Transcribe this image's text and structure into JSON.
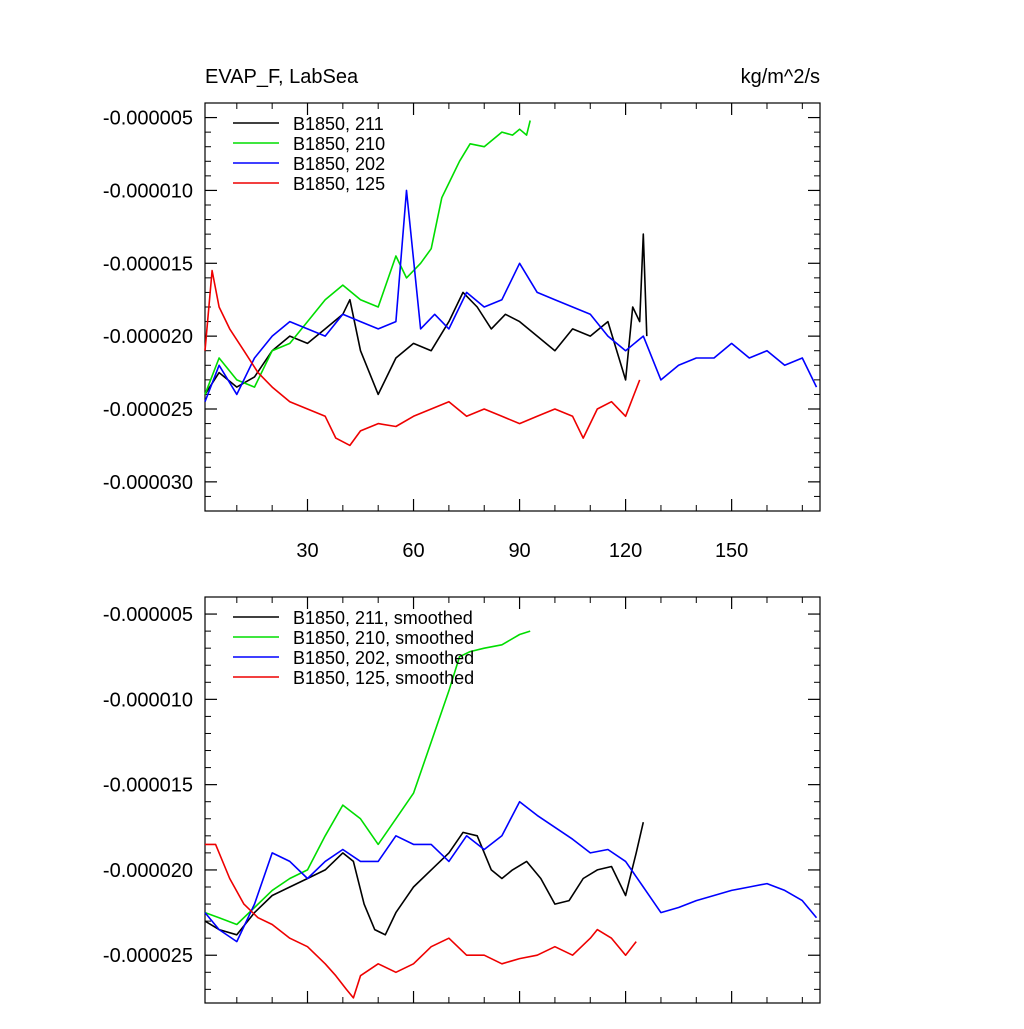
{
  "chart_data": [
    {
      "type": "line",
      "title": "EVAP_F, LabSea",
      "units": "kg/m^2/s",
      "xlim": [
        1,
        175
      ],
      "ylim": [
        -3.2e-05,
        -4e-06
      ],
      "xticks": [
        30,
        60,
        90,
        120,
        150
      ],
      "xtick_labels": [
        "30",
        "60",
        "90",
        "120",
        "150"
      ],
      "yticks": [
        -5e-06,
        -1e-05,
        -1.5e-05,
        -2e-05,
        -2.5e-05,
        -3e-05
      ],
      "ytick_labels": [
        "-0.000005",
        "-0.000010",
        "-0.000015",
        "-0.000020",
        "-0.000025",
        "-0.000030"
      ],
      "legend_position": "top-left",
      "series": [
        {
          "name": "B1850, 211",
          "color": "#000000",
          "x": [
            1,
            5,
            10,
            15,
            20,
            25,
            30,
            35,
            40,
            42,
            45,
            50,
            55,
            60,
            65,
            70,
            74,
            78,
            82,
            86,
            90,
            95,
            100,
            105,
            110,
            115,
            120,
            122,
            124,
            125,
            126
          ],
          "values": [
            -2.4e-05,
            -2.25e-05,
            -2.35e-05,
            -2.28e-05,
            -2.1e-05,
            -2e-05,
            -2.05e-05,
            -1.95e-05,
            -1.85e-05,
            -1.75e-05,
            -2.1e-05,
            -2.4e-05,
            -2.15e-05,
            -2.05e-05,
            -2.1e-05,
            -1.9e-05,
            -1.7e-05,
            -1.8e-05,
            -1.95e-05,
            -1.85e-05,
            -1.9e-05,
            -2e-05,
            -2.1e-05,
            -1.95e-05,
            -2e-05,
            -1.9e-05,
            -2.3e-05,
            -1.8e-05,
            -1.9e-05,
            -1.3e-05,
            -2e-05
          ]
        },
        {
          "name": "B1850, 210",
          "color": "#00dd00",
          "x": [
            1,
            5,
            10,
            15,
            20,
            25,
            30,
            35,
            40,
            45,
            50,
            55,
            58,
            62,
            65,
            68,
            70,
            73,
            76,
            80,
            85,
            88,
            90,
            92,
            93
          ],
          "values": [
            -2.4e-05,
            -2.15e-05,
            -2.3e-05,
            -2.35e-05,
            -2.1e-05,
            -2.05e-05,
            -1.9e-05,
            -1.75e-05,
            -1.65e-05,
            -1.75e-05,
            -1.8e-05,
            -1.45e-05,
            -1.6e-05,
            -1.5e-05,
            -1.4e-05,
            -1.05e-05,
            -9.5e-06,
            -8e-06,
            -6.8e-06,
            -7e-06,
            -6e-06,
            -6.2e-06,
            -5.8e-06,
            -6.2e-06,
            -5.2e-06
          ]
        },
        {
          "name": "B1850, 202",
          "color": "#0000ff",
          "x": [
            1,
            5,
            10,
            15,
            20,
            25,
            30,
            35,
            40,
            45,
            50,
            55,
            58,
            62,
            66,
            70,
            75,
            80,
            85,
            90,
            95,
            100,
            105,
            110,
            115,
            120,
            125,
            130,
            135,
            140,
            145,
            150,
            155,
            160,
            165,
            170,
            174
          ],
          "values": [
            -2.45e-05,
            -2.2e-05,
            -2.4e-05,
            -2.15e-05,
            -2e-05,
            -1.9e-05,
            -1.95e-05,
            -2e-05,
            -1.85e-05,
            -1.9e-05,
            -1.95e-05,
            -1.9e-05,
            -1e-05,
            -1.95e-05,
            -1.85e-05,
            -1.95e-05,
            -1.7e-05,
            -1.8e-05,
            -1.75e-05,
            -1.5e-05,
            -1.7e-05,
            -1.75e-05,
            -1.8e-05,
            -1.85e-05,
            -2e-05,
            -2.1e-05,
            -2e-05,
            -2.3e-05,
            -2.2e-05,
            -2.15e-05,
            -2.15e-05,
            -2.05e-05,
            -2.15e-05,
            -2.1e-05,
            -2.2e-05,
            -2.15e-05,
            -2.35e-05
          ]
        },
        {
          "name": "B1850, 125",
          "color": "#ee0000",
          "x": [
            1,
            3,
            5,
            8,
            12,
            16,
            20,
            25,
            30,
            35,
            38,
            42,
            45,
            50,
            55,
            60,
            65,
            70,
            75,
            80,
            85,
            90,
            95,
            100,
            105,
            108,
            112,
            116,
            120,
            124
          ],
          "values": [
            -2.1e-05,
            -1.55e-05,
            -1.8e-05,
            -1.95e-05,
            -2.1e-05,
            -2.25e-05,
            -2.35e-05,
            -2.45e-05,
            -2.5e-05,
            -2.55e-05,
            -2.7e-05,
            -2.75e-05,
            -2.65e-05,
            -2.6e-05,
            -2.62e-05,
            -2.55e-05,
            -2.5e-05,
            -2.45e-05,
            -2.55e-05,
            -2.5e-05,
            -2.55e-05,
            -2.6e-05,
            -2.55e-05,
            -2.5e-05,
            -2.55e-05,
            -2.7e-05,
            -2.5e-05,
            -2.45e-05,
            -2.55e-05,
            -2.3e-05
          ]
        }
      ]
    },
    {
      "type": "line",
      "title": "",
      "xlim": [
        1,
        175
      ],
      "ylim": [
        -2.78e-05,
        -4e-06
      ],
      "xticks": [
        30,
        60,
        90,
        120,
        150
      ],
      "xtick_labels": [
        "",
        "",
        "",
        "",
        ""
      ],
      "yticks": [
        -5e-06,
        -1e-05,
        -1.5e-05,
        -2e-05,
        -2.5e-05
      ],
      "ytick_labels": [
        "-0.000005",
        "-0.000010",
        "-0.000015",
        "-0.000020",
        "-0.000025"
      ],
      "legend_position": "top-left",
      "series": [
        {
          "name": "B1850, 211, smoothed",
          "color": "#000000",
          "x": [
            1,
            5,
            10,
            15,
            20,
            25,
            30,
            35,
            40,
            43,
            46,
            49,
            52,
            55,
            60,
            65,
            70,
            74,
            78,
            82,
            85,
            88,
            92,
            96,
            100,
            104,
            108,
            112,
            116,
            120,
            123,
            125
          ],
          "values": [
            -2.3e-05,
            -2.35e-05,
            -2.38e-05,
            -2.25e-05,
            -2.15e-05,
            -2.1e-05,
            -2.05e-05,
            -2e-05,
            -1.9e-05,
            -1.95e-05,
            -2.2e-05,
            -2.35e-05,
            -2.38e-05,
            -2.25e-05,
            -2.1e-05,
            -2e-05,
            -1.9e-05,
            -1.78e-05,
            -1.8e-05,
            -2e-05,
            -2.05e-05,
            -2e-05,
            -1.95e-05,
            -2.05e-05,
            -2.2e-05,
            -2.18e-05,
            -2.05e-05,
            -2e-05,
            -1.98e-05,
            -2.15e-05,
            -1.9e-05,
            -1.72e-05
          ]
        },
        {
          "name": "B1850, 210, smoothed",
          "color": "#00dd00",
          "x": [
            1,
            5,
            10,
            15,
            20,
            25,
            30,
            35,
            40,
            45,
            50,
            55,
            60,
            65,
            70,
            73,
            76,
            80,
            85,
            90,
            93
          ],
          "values": [
            -2.25e-05,
            -2.28e-05,
            -2.32e-05,
            -2.22e-05,
            -2.12e-05,
            -2.05e-05,
            -2e-05,
            -1.8e-05,
            -1.62e-05,
            -1.7e-05,
            -1.85e-05,
            -1.7e-05,
            -1.55e-05,
            -1.25e-05,
            -9.5e-06,
            -7.5e-06,
            -7.2e-06,
            -7e-06,
            -6.8e-06,
            -6.2e-06,
            -6e-06
          ]
        },
        {
          "name": "B1850, 202, smoothed",
          "color": "#0000ff",
          "x": [
            1,
            5,
            10,
            15,
            20,
            25,
            30,
            35,
            40,
            45,
            50,
            55,
            60,
            65,
            70,
            75,
            80,
            85,
            90,
            95,
            100,
            105,
            110,
            115,
            120,
            125,
            130,
            135,
            140,
            145,
            150,
            155,
            160,
            165,
            170,
            174
          ],
          "values": [
            -2.25e-05,
            -2.35e-05,
            -2.42e-05,
            -2.2e-05,
            -1.9e-05,
            -1.95e-05,
            -2.05e-05,
            -1.95e-05,
            -1.88e-05,
            -1.95e-05,
            -1.95e-05,
            -1.8e-05,
            -1.85e-05,
            -1.85e-05,
            -1.95e-05,
            -1.8e-05,
            -1.88e-05,
            -1.8e-05,
            -1.6e-05,
            -1.68e-05,
            -1.75e-05,
            -1.82e-05,
            -1.9e-05,
            -1.88e-05,
            -1.95e-05,
            -2.1e-05,
            -2.25e-05,
            -2.22e-05,
            -2.18e-05,
            -2.15e-05,
            -2.12e-05,
            -2.1e-05,
            -2.08e-05,
            -2.12e-05,
            -2.18e-05,
            -2.28e-05
          ]
        },
        {
          "name": "B1850, 125, smoothed",
          "color": "#ee0000",
          "x": [
            1,
            4,
            8,
            12,
            16,
            20,
            25,
            30,
            35,
            38,
            41,
            43,
            45,
            50,
            55,
            60,
            65,
            70,
            75,
            80,
            85,
            90,
            95,
            100,
            105,
            110,
            112,
            116,
            120,
            123
          ],
          "values": [
            -1.85e-05,
            -1.85e-05,
            -2.05e-05,
            -2.2e-05,
            -2.28e-05,
            -2.32e-05,
            -2.4e-05,
            -2.45e-05,
            -2.55e-05,
            -2.62e-05,
            -2.7e-05,
            -2.75e-05,
            -2.62e-05,
            -2.55e-05,
            -2.6e-05,
            -2.55e-05,
            -2.45e-05,
            -2.4e-05,
            -2.5e-05,
            -2.5e-05,
            -2.55e-05,
            -2.52e-05,
            -2.5e-05,
            -2.45e-05,
            -2.5e-05,
            -2.4e-05,
            -2.35e-05,
            -2.4e-05,
            -2.5e-05,
            -2.42e-05
          ]
        }
      ]
    }
  ]
}
